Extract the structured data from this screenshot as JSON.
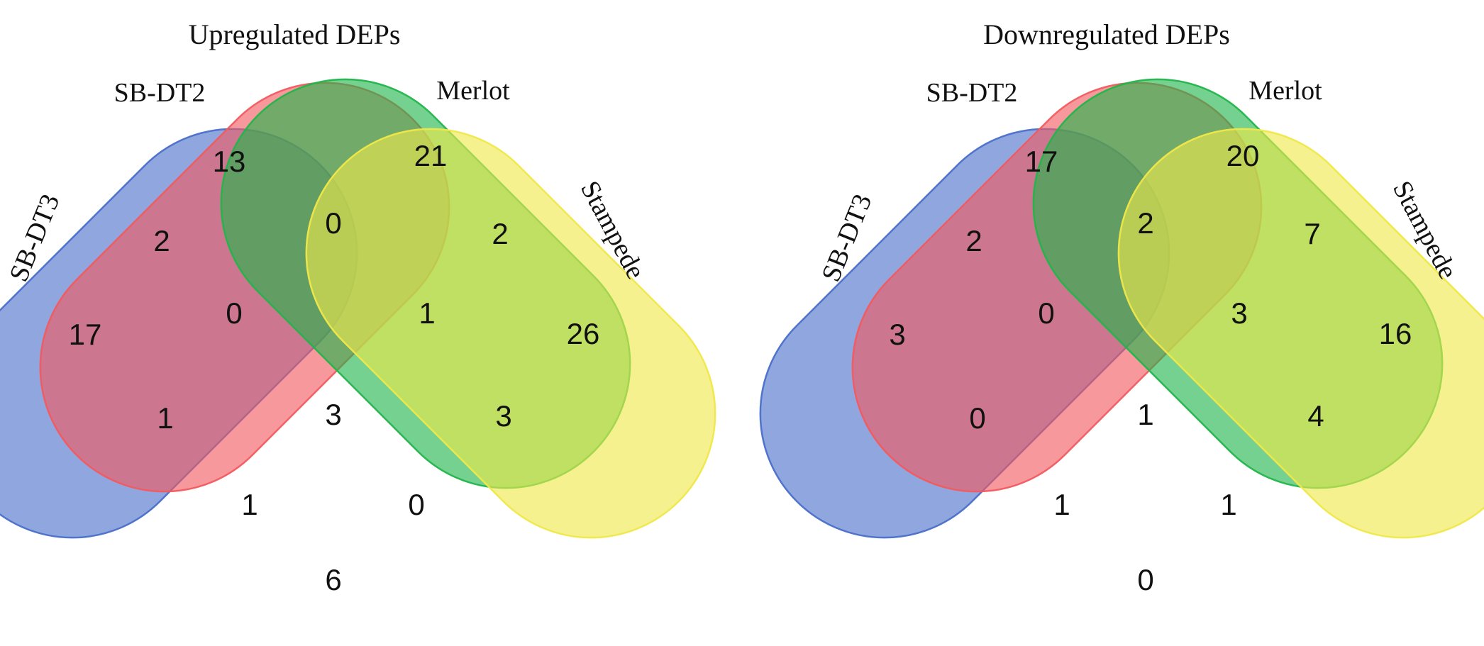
{
  "colors": {
    "SB-DT3": "#4a6fc9",
    "SB-DT2": "#f25a5f",
    "Merlot": "#21b54a",
    "Stampede": "#efe84a"
  },
  "diagrams": [
    {
      "title": "Upregulated DEPs",
      "sets": [
        "SB-DT3",
        "SB-DT2",
        "Merlot",
        "Stampede"
      ],
      "counts": {
        "A": "17",
        "B": "13",
        "C": "21",
        "D": "26",
        "AB": "2",
        "BC": "0",
        "CD": "2",
        "AC": "1",
        "BD": "3",
        "AD": "6",
        "ABC": "0",
        "BCD": "1",
        "ACD": "1",
        "ABD": "0",
        "ABCD": "3"
      }
    },
    {
      "title": "Downregulated DEPs",
      "sets": [
        "SB-DT3",
        "SB-DT2",
        "Merlot",
        "Stampede"
      ],
      "counts": {
        "A": "3",
        "B": "17",
        "C": "20",
        "D": "16",
        "AB": "2",
        "BC": "2",
        "CD": "7",
        "AC": "0",
        "BD": "4",
        "AD": "0",
        "ABC": "0",
        "BCD": "3",
        "ACD": "1",
        "ABD": "1",
        "ABCD": "1"
      }
    }
  ]
}
